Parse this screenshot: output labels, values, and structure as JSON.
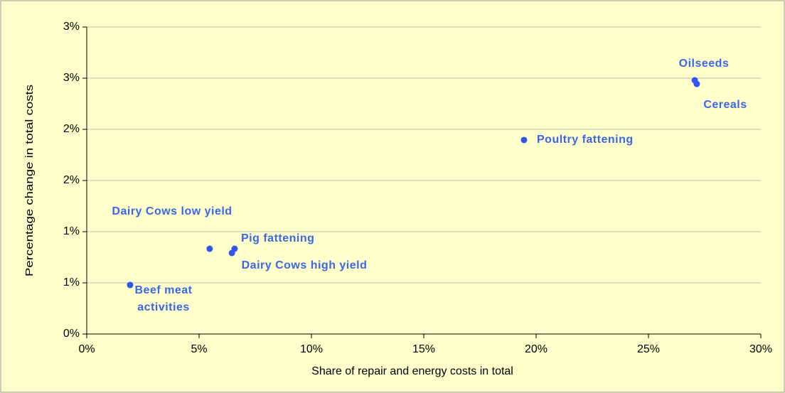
{
  "chart_data": {
    "type": "scatter",
    "xlabel": "Share of repair and energy costs in total",
    "ylabel": "Percentage change in total costs",
    "labels": [
      "Oilseeds",
      "Cereals",
      "Poultry fattening",
      "Dairy Cows low yield",
      "Pig fattening",
      "Dairy Cows high yield",
      "Beef meat activities"
    ],
    "x": [
      27.06,
      27.15,
      19.46,
      5.47,
      6.58,
      6.46,
      1.93
    ],
    "y": [
      2.479,
      2.444,
      1.896,
      0.833,
      0.833,
      0.792,
      0.479
    ],
    "color": "#3355ee",
    "label_color": "#3b66e8",
    "xlim": [
      0,
      30
    ],
    "xticks": [
      {
        "value": 0,
        "label": "0%"
      },
      {
        "value": 5,
        "label": "5%"
      },
      {
        "value": 10,
        "label": "10%"
      },
      {
        "value": 15,
        "label": "15%"
      },
      {
        "value": 20,
        "label": "20%"
      },
      {
        "value": 25,
        "label": "25%"
      },
      {
        "value": 30,
        "label": "30%"
      }
    ],
    "ylim": [
      0,
      3
    ],
    "yticks": [
      {
        "value": 0,
        "label": "0%"
      },
      {
        "value": 0.5,
        "label": "1%"
      },
      {
        "value": 1,
        "label": "1%"
      },
      {
        "value": 1.5,
        "label": "2%"
      },
      {
        "value": 2,
        "label": "2%"
      },
      {
        "value": 2.5,
        "label": "3%"
      },
      {
        "value": 3,
        "label": "3%"
      }
    ],
    "grid": true
  }
}
